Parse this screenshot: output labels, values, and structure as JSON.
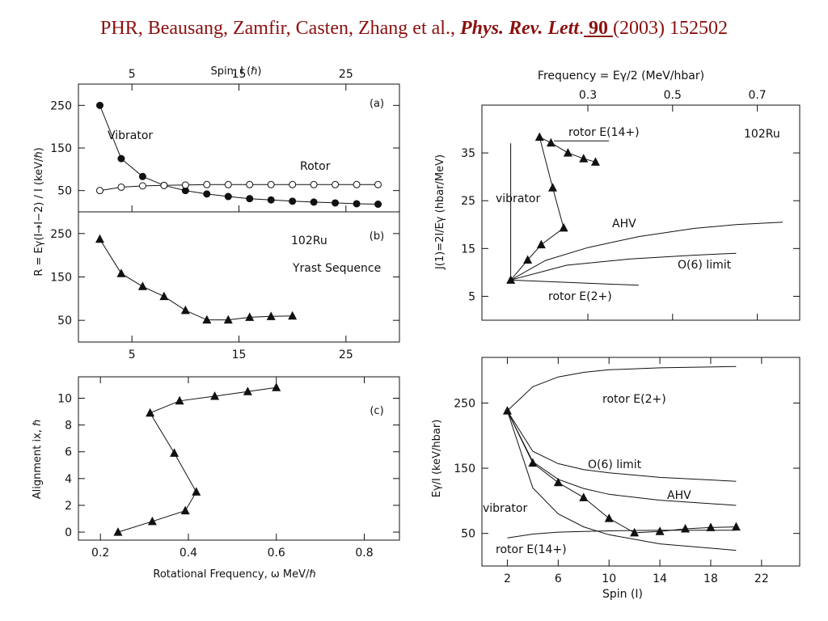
{
  "header": {
    "authors": "PHR, Beausang, Zamfir, Casten, Zhang et al.,",
    "journal": "Phys. Rev. Lett",
    "dot": ".",
    "volume": " 90 ",
    "year": "(2003)",
    "page": "152502"
  },
  "labels": {
    "top_left_axis": "Spin, I (ℏ)",
    "left_ylabel": "R = Eγ(I→I−2) / I (keV/ℏ)",
    "panel_a": "(a)",
    "panel_b": "(b)",
    "panel_c": "(c)",
    "vibrator": "Vibrator",
    "rotor": "Rotor",
    "nucleus": "102Ru",
    "yrast": "Yrast Sequence",
    "c_ylabel": "Alignment ix, ℏ",
    "c_xlabel": "Rotational Frequency, ω MeV/ℏ",
    "tr_top_label": "Frequency = Eγ/2 (MeV/hbar)",
    "tr_ylabel": "J(1)=2I/Eγ (hbar/MeV)",
    "tr_rotor14": "rotor E(14+)",
    "tr_nucleus": "102Ru",
    "tr_vibrator": "vibrator",
    "tr_ahv": "AHV",
    "tr_o6": "O(6) limit",
    "tr_rotor2": "rotor E(2+)",
    "br_ylabel": "Eγ/I (keV/hbar)",
    "br_xlabel": "Spin (I)",
    "br_rotor2": "rotor E(2+)",
    "br_o6": "O(6) limit",
    "br_ahv": "AHV",
    "br_vibrator": "vibrator",
    "br_rotor14": "rotor E(14+)"
  },
  "chart_data": [
    {
      "type": "scatter",
      "panel": "(a)",
      "xlabel": "Spin, I (ℏ)",
      "ylabel": "R = Eγ(I→I−2) / I (keV/ℏ)",
      "xlim": [
        0,
        30
      ],
      "ylim": [
        0,
        300
      ],
      "x_ticks": [
        5,
        15,
        25
      ],
      "y_ticks": [
        50,
        150,
        250
      ],
      "series": [
        {
          "name": "Vibrator",
          "marker": "filled-circle",
          "x": [
            2,
            4,
            6,
            8,
            10,
            12,
            14,
            16,
            18,
            20,
            22,
            24,
            26,
            28
          ],
          "y": [
            250,
            125,
            83,
            62,
            50,
            42,
            36,
            31,
            28,
            25,
            23,
            21,
            19,
            18
          ]
        },
        {
          "name": "Rotor",
          "marker": "open-circle",
          "x": [
            2,
            4,
            6,
            8,
            10,
            12,
            14,
            16,
            18,
            20,
            22,
            24,
            26,
            28
          ],
          "y": [
            50,
            58,
            61,
            62,
            63,
            64,
            64,
            64,
            64,
            64,
            64,
            64,
            64,
            64
          ]
        }
      ]
    },
    {
      "type": "line",
      "panel": "(b)",
      "title": "102Ru Yrast Sequence",
      "xlim": [
        0,
        30
      ],
      "ylim": [
        0,
        300
      ],
      "x_ticks": [
        5,
        15,
        25
      ],
      "y_ticks": [
        50,
        150,
        250
      ],
      "series": [
        {
          "marker": "triangle",
          "x": [
            2,
            4,
            6,
            8,
            10,
            12,
            14,
            16,
            18,
            20
          ],
          "y": [
            237,
            158,
            128,
            105,
            73,
            51,
            51,
            57,
            59,
            60
          ]
        }
      ]
    },
    {
      "type": "line",
      "panel": "(c)",
      "xlabel": "Rotational Frequency, ω MeV/ℏ",
      "ylabel": "Alignment ix, ℏ",
      "xlim": [
        0.15,
        0.88
      ],
      "ylim": [
        -0.6,
        11.6
      ],
      "x_ticks": [
        0.2,
        0.4,
        0.6,
        0.8
      ],
      "y_ticks": [
        0,
        2,
        4,
        6,
        8,
        10
      ],
      "series": [
        {
          "marker": "triangle",
          "x": [
            0.24,
            0.318,
            0.393,
            0.418,
            0.368,
            0.313,
            0.38,
            0.46,
            0.535,
            0.6
          ],
          "y": [
            0,
            0.8,
            1.6,
            3.0,
            5.9,
            8.9,
            9.8,
            10.15,
            10.5,
            10.8
          ]
        }
      ]
    },
    {
      "type": "line",
      "panel": "top-right",
      "xlabel": "Frequency = Eγ/2 (MeV/hbar)",
      "ylabel": "J(1)=2I/Eγ (hbar/MeV)",
      "xlim": [
        0.05,
        0.8
      ],
      "ylim": [
        0,
        45
      ],
      "x_ticks": [
        0.3,
        0.5,
        0.7
      ],
      "y_ticks": [
        5,
        15,
        25,
        35
      ],
      "series": [
        {
          "name": "102Ru",
          "marker": "triangle",
          "x": [
            0.118,
            0.158,
            0.19,
            0.243,
            0.217,
            0.186,
            0.213,
            0.253,
            0.29,
            0.318
          ],
          "y": [
            8.4,
            12.6,
            15.8,
            19.3,
            27.7,
            38.3,
            37.1,
            35,
            33.8,
            33.1
          ]
        },
        {
          "name": "rotor E(14+)",
          "marker": "none",
          "x": [
            0.22,
            0.35
          ],
          "y": [
            37.5,
            37.5
          ]
        },
        {
          "name": "AHV",
          "marker": "none",
          "x": [
            0.118,
            0.2,
            0.3,
            0.42,
            0.55,
            0.65,
            0.76
          ],
          "y": [
            8.4,
            12.5,
            15.2,
            17.5,
            19.2,
            20,
            20.5
          ]
        },
        {
          "name": "O(6) limit",
          "marker": "none",
          "x": [
            0.118,
            0.25,
            0.4,
            0.55,
            0.65
          ],
          "y": [
            8.4,
            11.5,
            12.8,
            13.6,
            14
          ]
        },
        {
          "name": "rotor E(2+)",
          "marker": "none",
          "x": [
            0.118,
            0.42
          ],
          "y": [
            8.4,
            7.3
          ]
        },
        {
          "name": "vibrator",
          "marker": "none",
          "x": [
            0.118,
            0.118
          ],
          "y": [
            8.4,
            37
          ]
        }
      ]
    },
    {
      "type": "line",
      "panel": "bottom-right",
      "xlabel": "Spin (I)",
      "ylabel": "Eγ/I (keV/hbar)",
      "xlim": [
        0,
        25
      ],
      "ylim": [
        0,
        320
      ],
      "x_ticks": [
        2,
        6,
        10,
        14,
        18,
        22
      ],
      "y_ticks": [
        50,
        150,
        250
      ],
      "series": [
        {
          "name": "102Ru",
          "marker": "triangle",
          "x": [
            2,
            4,
            6,
            8,
            10,
            12,
            14,
            16,
            18,
            20
          ],
          "y": [
            238,
            158,
            128,
            105,
            73,
            51,
            53,
            57,
            59,
            60
          ]
        },
        {
          "name": "rotor E(2+)",
          "marker": "none",
          "x": [
            2,
            4,
            6,
            8,
            10,
            14,
            20
          ],
          "y": [
            238,
            275,
            290,
            297,
            301,
            304,
            306
          ]
        },
        {
          "name": "O(6) limit",
          "marker": "none",
          "x": [
            2,
            4,
            6,
            8,
            10,
            14,
            20
          ],
          "y": [
            238,
            176,
            157,
            148,
            143,
            136,
            130
          ]
        },
        {
          "name": "AHV",
          "marker": "none",
          "x": [
            2,
            4,
            6,
            8,
            10,
            14,
            20
          ],
          "y": [
            238,
            160,
            133,
            119,
            110,
            101,
            93
          ]
        },
        {
          "name": "vibrator",
          "marker": "none",
          "x": [
            2,
            4,
            6,
            8,
            10,
            14,
            20
          ],
          "y": [
            238,
            120,
            80,
            60,
            48,
            34,
            24
          ]
        },
        {
          "name": "rotor E(14+)",
          "marker": "none",
          "x": [
            2,
            4,
            6,
            8,
            10,
            14,
            20
          ],
          "y": [
            43,
            49,
            52,
            53,
            54,
            55,
            55
          ]
        }
      ]
    }
  ]
}
